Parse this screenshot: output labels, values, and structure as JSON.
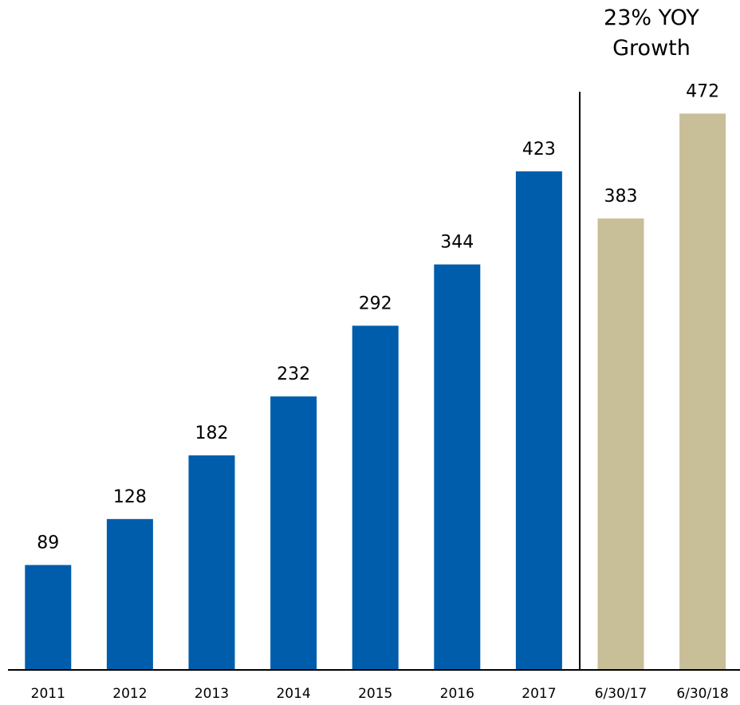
{
  "chart_data": {
    "type": "bar",
    "annotation": "23% YOY Growth",
    "categories": [
      "2011",
      "2012",
      "2013",
      "2014",
      "2015",
      "2016",
      "2017",
      "6/30/17",
      "6/30/18"
    ],
    "values": [
      89,
      128,
      182,
      232,
      292,
      344,
      423,
      383,
      472
    ],
    "colors": [
      "#005dab",
      "#005dab",
      "#005dab",
      "#005dab",
      "#005dab",
      "#005dab",
      "#005dab",
      "#c8bf98",
      "#c8bf98"
    ],
    "ylim": [
      0,
      500
    ]
  }
}
